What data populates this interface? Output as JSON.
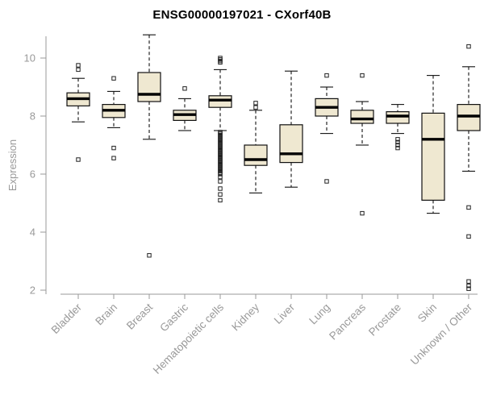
{
  "title": "ENSG00000197021 - CXorf40B",
  "chart_data": {
    "type": "boxplot",
    "title": "ENSG00000197021 - CXorf40B",
    "ylabel": "Expression",
    "xlabel": "",
    "ylim": [
      2,
      11
    ],
    "yticks": [
      2,
      4,
      6,
      8,
      10
    ],
    "grid": false,
    "legend": false,
    "style": {
      "box_fill": "#EFE8D1",
      "box_stroke": "#111111",
      "median_color": "#000000",
      "axis_color": "#999999",
      "outlier_stroke": "#222222",
      "title_color": "#000000"
    },
    "categories": [
      "Bladder",
      "Brain",
      "Breast",
      "Gastric",
      "Hematopoietic cells",
      "Kidney",
      "Liver",
      "Lung",
      "Pancreas",
      "Prostate",
      "Skin",
      "Unknown / Other"
    ],
    "series": [
      {
        "category": "Bladder",
        "low": 7.8,
        "q1": 8.35,
        "median": 8.6,
        "q3": 8.8,
        "high": 9.3,
        "outliers": [
          9.75,
          9.6,
          6.5
        ]
      },
      {
        "category": "Brain",
        "low": 7.6,
        "q1": 7.95,
        "median": 8.2,
        "q3": 8.4,
        "high": 8.85,
        "outliers": [
          9.3,
          6.9,
          6.55
        ]
      },
      {
        "category": "Breast",
        "low": 7.2,
        "q1": 8.5,
        "median": 8.75,
        "q3": 9.5,
        "high": 10.8,
        "outliers": [
          3.2
        ]
      },
      {
        "category": "Gastric",
        "low": 7.5,
        "q1": 7.85,
        "median": 8.05,
        "q3": 8.2,
        "high": 8.6,
        "outliers": [
          8.95
        ]
      },
      {
        "category": "Hematopoietic cells",
        "low": 7.5,
        "q1": 8.3,
        "median": 8.55,
        "q3": 8.7,
        "high": 9.6,
        "outliers": [
          10.0,
          9.95,
          9.9,
          9.85,
          7.45,
          7.4,
          7.35,
          7.3,
          7.25,
          7.2,
          7.15,
          7.1,
          7.05,
          7.0,
          6.95,
          6.9,
          6.85,
          6.8,
          6.75,
          6.7,
          6.65,
          6.6,
          6.55,
          6.5,
          6.45,
          6.4,
          6.35,
          6.3,
          6.25,
          6.2,
          6.15,
          6.1,
          6.05,
          6.0,
          5.9,
          5.75,
          5.5,
          5.3,
          5.1
        ]
      },
      {
        "category": "Kidney",
        "low": 5.35,
        "q1": 6.3,
        "median": 6.5,
        "q3": 7.0,
        "high": 8.2,
        "outliers": [
          8.45,
          8.3
        ]
      },
      {
        "category": "Liver",
        "low": 5.55,
        "q1": 6.4,
        "median": 6.7,
        "q3": 7.7,
        "high": 9.55,
        "outliers": []
      },
      {
        "category": "Lung",
        "low": 7.4,
        "q1": 8.0,
        "median": 8.3,
        "q3": 8.6,
        "high": 9.0,
        "outliers": [
          9.4,
          5.75
        ]
      },
      {
        "category": "Pancreas",
        "low": 7.0,
        "q1": 7.75,
        "median": 7.9,
        "q3": 8.2,
        "high": 8.5,
        "outliers": [
          9.4,
          4.65
        ]
      },
      {
        "category": "Prostate",
        "low": 7.4,
        "q1": 7.75,
        "median": 8.0,
        "q3": 8.15,
        "high": 8.4,
        "outliers": [
          7.2,
          7.1,
          7.0,
          6.9
        ]
      },
      {
        "category": "Skin",
        "low": 4.65,
        "q1": 5.1,
        "median": 7.2,
        "q3": 8.1,
        "high": 9.4,
        "outliers": []
      },
      {
        "category": "Unknown / Other",
        "low": 6.1,
        "q1": 7.5,
        "median": 8.0,
        "q3": 8.4,
        "high": 9.7,
        "outliers": [
          10.4,
          4.85,
          3.85,
          2.3,
          2.15,
          2.05
        ]
      }
    ]
  }
}
